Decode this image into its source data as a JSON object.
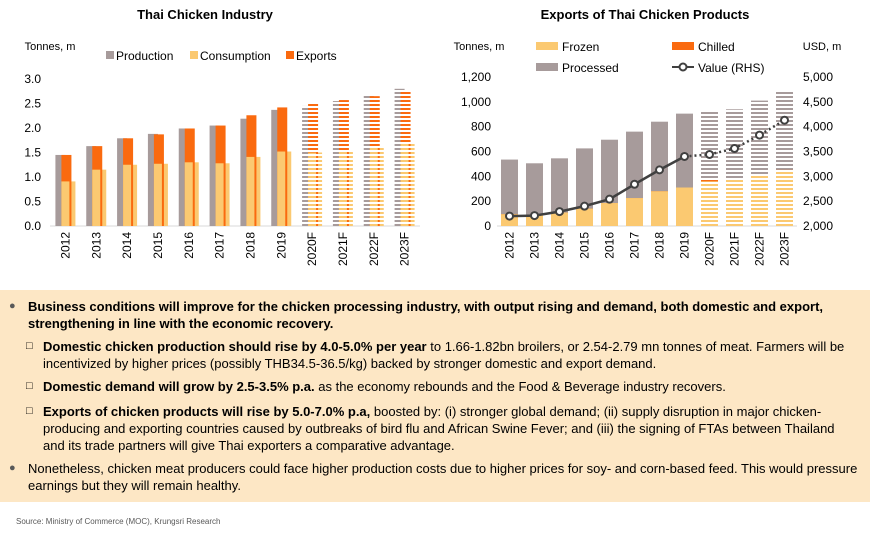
{
  "chart_data": [
    {
      "type": "bar",
      "title": "Thai Chicken Industry",
      "ylabel": "Tonnes, m",
      "ylim": [
        0,
        3.0
      ],
      "yticks": [
        "0.0",
        "0.5",
        "1.0",
        "1.5",
        "2.0",
        "2.5",
        "3.0"
      ],
      "categories": [
        "2012",
        "2013",
        "2014",
        "2015",
        "2016",
        "2017",
        "2018",
        "2019",
        "2020F",
        "2021F",
        "2022F",
        "2023F"
      ],
      "forecast_from_index": 8,
      "series": [
        {
          "name": "Production",
          "color": "#a79b9b",
          "values": [
            1.45,
            1.63,
            1.79,
            1.88,
            1.99,
            2.05,
            2.19,
            2.37,
            2.45,
            2.55,
            2.67,
            2.8
          ]
        },
        {
          "name": "Consumption",
          "color": "#fbc971",
          "values": [
            0.91,
            1.15,
            1.25,
            1.27,
            1.3,
            1.28,
            1.41,
            1.52,
            1.5,
            1.55,
            1.62,
            1.7
          ]
        },
        {
          "name": "Exports",
          "color": "#fa6a0f",
          "values": [
            1.45,
            1.63,
            1.79,
            1.87,
            1.99,
            2.05,
            2.26,
            2.42,
            2.5,
            2.57,
            2.65,
            2.75
          ]
        }
      ]
    },
    {
      "type": "bar",
      "title": "Exports of Thai Chicken Products",
      "ylabel": "Tonnes, m",
      "ylabel_right": "USD, m",
      "ylim": [
        0,
        1200
      ],
      "ylim_right": [
        2000,
        5000
      ],
      "yticks": [
        "0",
        "200",
        "400",
        "600",
        "800",
        "1,000",
        "1,200"
      ],
      "yticks_right": [
        "2,000",
        "2,500",
        "3,000",
        "3,500",
        "4,000",
        "4,500",
        "5,000"
      ],
      "categories": [
        "2012",
        "2013",
        "2014",
        "2015",
        "2016",
        "2017",
        "2018",
        "2019",
        "2020F",
        "2021F",
        "2022F",
        "2023F"
      ],
      "forecast_from_index": 8,
      "series": [
        {
          "name": "Frozen",
          "color": "#fbc971",
          "values": [
            95,
            88,
            108,
            140,
            185,
            225,
            280,
            310,
            360,
            375,
            405,
            440
          ]
        },
        {
          "name": "Chilled",
          "color": "#fa6a0f",
          "values": [
            0,
            0,
            0,
            0,
            0,
            0,
            0,
            0,
            10,
            10,
            12,
            12
          ]
        },
        {
          "name": "Processed",
          "color": "#a79b9b",
          "values": [
            535,
            505,
            545,
            625,
            695,
            760,
            840,
            905,
            920,
            940,
            1010,
            1090
          ]
        },
        {
          "name": "Value (RHS)",
          "color": "#404040",
          "values": [
            2200,
            2210,
            2290,
            2400,
            2540,
            2840,
            3130,
            3400,
            3440,
            3560,
            3830,
            4130
          ]
        }
      ]
    }
  ],
  "bullets": [
    {
      "bold": "Business conditions will improve for the chicken processing industry, with output rising and demand, both domestic and export, strengthening in line with the economic recovery.",
      "text": ""
    },
    {
      "bold": "Domestic chicken production should rise by 4.0-5.0% per year",
      "text": " to 1.66-1.82bn broilers, or 2.54-2.79 mn tonnes of meat. Farmers will be incentivized by higher prices (possibly THB34.5-36.5/kg) backed by stronger domestic and export demand."
    },
    {
      "bold": "Domestic demand will grow by 2.5-3.5% p.a.",
      "text": " as the economy rebounds and the Food & Beverage industry recovers."
    },
    {
      "bold": "Exports of chicken products will rise by 5.0-7.0% p.a,",
      "text": " boosted by: (i) stronger global demand; (ii) supply disruption in major chicken-producing and exporting countries caused by outbreaks of bird flu and African Swine Fever; and (iii) the signing of FTAs between Thailand and its trade partners will give Thai exporters a comparative advantage."
    },
    {
      "bold": "",
      "text": "Nonetheless, chicken meat producers could face higher production costs due to higher prices for soy- and corn-based feed. This would pressure earnings but they will remain healthy."
    }
  ],
  "bullet_marks": {
    "main": "●",
    "sub": "□"
  },
  "source": "Source: Ministry of Commerce (MOC), Krungsri Research"
}
